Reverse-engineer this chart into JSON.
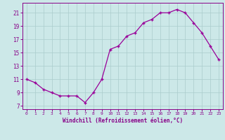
{
  "x": [
    0,
    1,
    2,
    3,
    4,
    5,
    6,
    7,
    8,
    9,
    10,
    11,
    12,
    13,
    14,
    15,
    16,
    17,
    18,
    19,
    20,
    21,
    22,
    23
  ],
  "y": [
    11,
    10.5,
    9.5,
    9,
    8.5,
    8.5,
    8.5,
    7.5,
    9,
    11,
    15.5,
    16,
    17.5,
    18,
    19.5,
    20,
    21,
    21,
    21.5,
    21,
    19.5,
    18,
    16,
    14
  ],
  "line_color": "#990099",
  "marker": "+",
  "bg_color": "#cce8e8",
  "grid_color": "#aacccc",
  "xlabel": "Windchill (Refroidissement éolien,°C)",
  "xlim": [
    -0.5,
    23.5
  ],
  "ylim": [
    6.5,
    22.5
  ],
  "yticks": [
    7,
    9,
    11,
    13,
    15,
    17,
    19,
    21
  ],
  "xticks": [
    0,
    1,
    2,
    3,
    4,
    5,
    6,
    7,
    8,
    9,
    10,
    11,
    12,
    13,
    14,
    15,
    16,
    17,
    18,
    19,
    20,
    21,
    22,
    23
  ],
  "tick_color": "#880088",
  "label_color": "#880088",
  "spine_color": "#880088"
}
